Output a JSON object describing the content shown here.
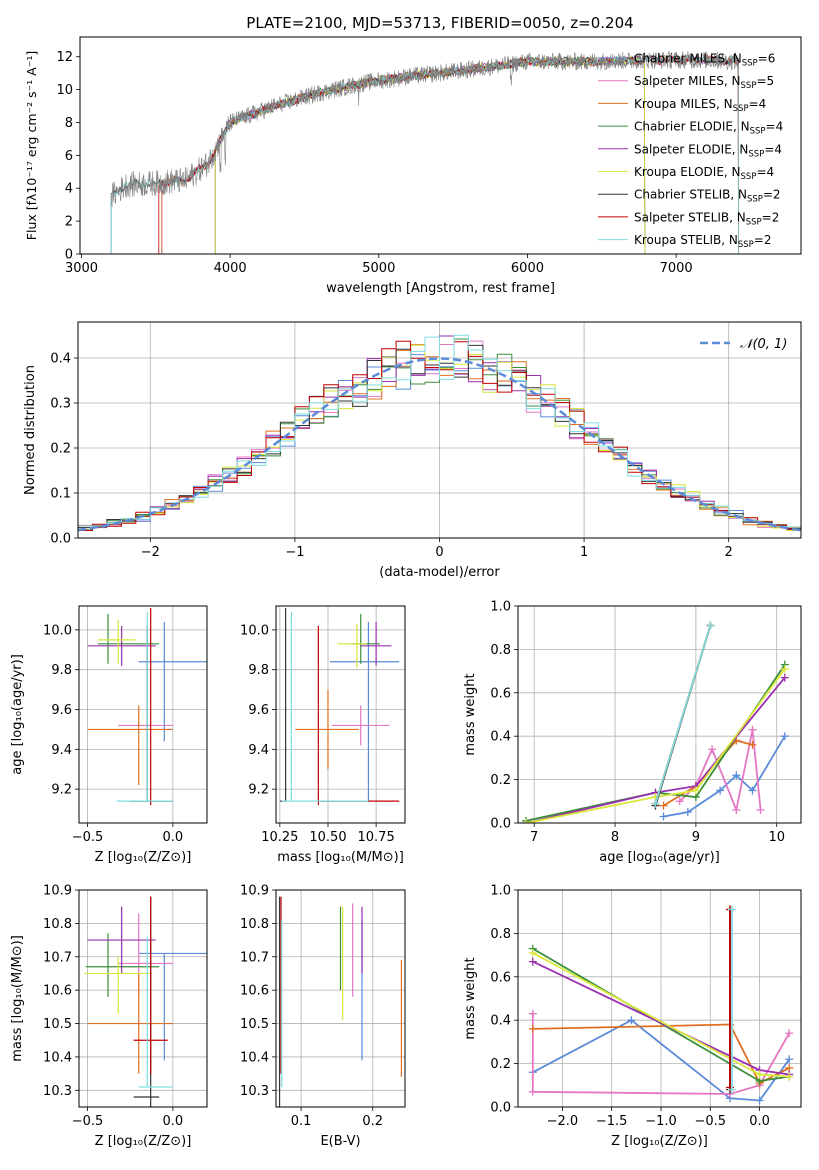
{
  "figure": {
    "title": "PLATE=2100, MJD=53713, FIBERID=0050, z=0.204"
  },
  "chart_data": [
    {
      "id": "spectrum",
      "type": "line",
      "xlabel": "wavelength [Angstrom, rest frame]",
      "ylabel": "Flux [fλ10⁻¹⁷ erg cm⁻² s⁻¹ A⁻¹]",
      "xlim": [
        2990,
        7840
      ],
      "ylim": [
        0,
        13.2
      ],
      "xticks": [
        3000,
        4000,
        5000,
        6000,
        7000
      ],
      "yticks": [
        0,
        2,
        4,
        6,
        8,
        10,
        12
      ],
      "legend_position": "right",
      "data_profile": {
        "x": [
          3200,
          3300,
          3500,
          3700,
          3850,
          4000,
          4300,
          4600,
          4900,
          5200,
          5600,
          6000,
          6400,
          6800,
          7200,
          7450
        ],
        "y": [
          3.5,
          4.2,
          4.3,
          4.5,
          5.5,
          8.0,
          9.0,
          9.8,
          10.4,
          10.8,
          11.2,
          11.7,
          11.7,
          11.8,
          11.8,
          11.7
        ]
      },
      "series": [
        {
          "name": "Chabrier MILES, N_SSP=6",
          "label_main": "Chabrier MILES, N",
          "label_sub": "SSP",
          "label_tail": "=6",
          "color": "#5b8bd8",
          "x_range": [
            3540,
            7420
          ]
        },
        {
          "name": "Salpeter MILES, N_SSP=5",
          "label_main": "Salpeter MILES, N",
          "label_sub": "SSP",
          "label_tail": "=5",
          "color": "#e377c2",
          "x_range": [
            3540,
            7420
          ]
        },
        {
          "name": "Kroupa MILES, N_SSP=4",
          "label_main": "Kroupa MILES, N",
          "label_sub": "SSP",
          "label_tail": "=4",
          "color": "#e0701f",
          "x_range": [
            3540,
            7420
          ]
        },
        {
          "name": "Chabrier ELODIE, N_SSP=4",
          "label_main": "Chabrier ELODIE, N",
          "label_sub": "SSP",
          "label_tail": "=4",
          "color": "#3b8f3b",
          "x_range": [
            3900,
            6790
          ]
        },
        {
          "name": "Salpeter ELODIE, N_SSP=4",
          "label_main": "Salpeter ELODIE, N",
          "label_sub": "SSP",
          "label_tail": "=4",
          "color": "#9b30b0",
          "x_range": [
            3900,
            6790
          ]
        },
        {
          "name": "Kroupa ELODIE, N_SSP=4",
          "label_main": "Kroupa ELODIE, N",
          "label_sub": "SSP",
          "label_tail": "=4",
          "color": "#d9e63a",
          "x_range": [
            3900,
            6790
          ]
        },
        {
          "name": "Chabrier STELIB, N_SSP=2",
          "label_main": "Chabrier STELIB, N",
          "label_sub": "SSP",
          "label_tail": "=2",
          "color": "#333333",
          "x_range": [
            3200,
            7420
          ]
        },
        {
          "name": "Salpeter STELIB, N_SSP=2",
          "label_main": "Salpeter STELIB, N",
          "label_sub": "SSP",
          "label_tail": "=2",
          "color": "#c00000",
          "x_range": [
            3520,
            7420
          ]
        },
        {
          "name": "Kroupa STELIB, N_SSP=2",
          "label_main": "Kroupa STELIB, N",
          "label_sub": "SSP",
          "label_tail": "=2",
          "color": "#7fdde0",
          "x_range": [
            3200,
            7420
          ]
        }
      ],
      "data_color": "#808080"
    },
    {
      "id": "residuals",
      "type": "histogram",
      "xlabel": "(data-model)/error",
      "ylabel": "Normed distribution",
      "xlim": [
        -2.5,
        2.5
      ],
      "ylim": [
        0,
        0.48
      ],
      "xticks": [
        -2,
        -1,
        0,
        1,
        2
      ],
      "yticks": [
        0.0,
        0.1,
        0.2,
        0.3,
        0.4
      ],
      "grid": true,
      "legend_position": "top-right",
      "bin_width": 0.1,
      "reference_label": "𝒩(0, 1)",
      "reference_color": "#5b8bd8",
      "histogram_colors": [
        "#5b8bd8",
        "#e377c2",
        "#e0701f",
        "#3b8f3b",
        "#9b30b0",
        "#d9e63a",
        "#333333",
        "#c00000",
        "#7fdde0"
      ]
    },
    {
      "id": "age_vs_Z",
      "type": "errorbar",
      "xlabel": "Z [log₁₀(Z/Z⊙)]",
      "ylabel": "age  [log₁₀(age/yr)]",
      "xlim": [
        -0.55,
        0.2
      ],
      "ylim": [
        9.03,
        10.12
      ],
      "xticks": [
        -0.5,
        0.0
      ],
      "yticks": [
        9.2,
        9.4,
        9.6,
        9.8,
        10.0
      ],
      "grid": true,
      "points": [
        {
          "x": -0.05,
          "y": 9.84,
          "xerr": [
            0.15,
            0.25
          ],
          "yerr": [
            0.4,
            0.2
          ],
          "color": "#5b8bd8"
        },
        {
          "x": -0.2,
          "y": 9.52,
          "xerr": [
            0.12,
            0.2
          ],
          "yerr": [
            0.0,
            0.0
          ],
          "color": "#e377c2"
        },
        {
          "x": -0.2,
          "y": 9.5,
          "xerr": [
            0.3,
            0.2
          ],
          "yerr": [
            0.28,
            0.12
          ],
          "color": "#e0701f"
        },
        {
          "x": -0.38,
          "y": 9.93,
          "xerr": [
            0.06,
            0.3
          ],
          "yerr": [
            0.1,
            0.15
          ],
          "color": "#3b8f3b"
        },
        {
          "x": -0.3,
          "y": 9.92,
          "xerr": [
            0.2,
            0.2
          ],
          "yerr": [
            0.1,
            0.1
          ],
          "color": "#9b30b0"
        },
        {
          "x": -0.32,
          "y": 9.95,
          "xerr": [
            0.12,
            0.1
          ],
          "yerr": [
            0.12,
            0.1
          ],
          "color": "#d9e63a"
        },
        {
          "x": -0.15,
          "y": 9.14,
          "xerr": [
            0.1,
            0.15
          ],
          "yerr": [
            0.0,
            0.88
          ],
          "color": "#333333"
        },
        {
          "x": -0.13,
          "y": 9.14,
          "xerr": [
            0.0,
            0.0
          ],
          "yerr": [
            0.02,
            0.97
          ],
          "color": "#c00000"
        },
        {
          "x": -0.15,
          "y": 9.14,
          "xerr": [
            0.18,
            0.15
          ],
          "yerr": [
            0.0,
            0.95
          ],
          "color": "#7fdde0"
        }
      ]
    },
    {
      "id": "age_vs_mass",
      "type": "errorbar",
      "xlabel": "mass [log₁₀(M/M⊙)]",
      "ylabel": "",
      "xlim": [
        10.23,
        10.9
      ],
      "ylim": [
        9.03,
        10.12
      ],
      "xticks": [
        10.25,
        10.5,
        10.75
      ],
      "xtick_labels": [
        "10.25",
        "10.50",
        "10.75"
      ],
      "yticks": [
        9.2,
        9.4,
        9.6,
        9.8,
        10.0
      ],
      "grid": true,
      "points": [
        {
          "x": 10.71,
          "y": 9.84,
          "xerr": [
            0.2,
            0.16
          ],
          "yerr": [
            0.7,
            0.2
          ],
          "color": "#5b8bd8"
        },
        {
          "x": 10.67,
          "y": 9.52,
          "xerr": [
            0.15,
            0.15
          ],
          "yerr": [
            0.1,
            0.1
          ],
          "color": "#e377c2"
        },
        {
          "x": 10.5,
          "y": 9.5,
          "xerr": [
            0.17,
            0.16
          ],
          "yerr": [
            0.2,
            0.2
          ],
          "color": "#e0701f"
        },
        {
          "x": 10.67,
          "y": 9.93,
          "xerr": [
            0.05,
            0.1
          ],
          "yerr": [
            0.1,
            0.15
          ],
          "color": "#3b8f3b"
        },
        {
          "x": 10.75,
          "y": 9.92,
          "xerr": [
            0.08,
            0.08
          ],
          "yerr": [
            0.1,
            0.12
          ],
          "color": "#9b30b0"
        },
        {
          "x": 10.65,
          "y": 9.93,
          "xerr": [
            0.1,
            0.05
          ],
          "yerr": [
            0.12,
            0.1
          ],
          "color": "#d9e63a"
        },
        {
          "x": 10.28,
          "y": 9.14,
          "xerr": [
            0.03,
            0.0
          ],
          "yerr": [
            0.0,
            0.97
          ],
          "color": "#333333"
        },
        {
          "x": 10.45,
          "y": 9.14,
          "xerr": [
            0.0,
            0.42
          ],
          "yerr": [
            0.02,
            0.88
          ],
          "color": "#c00000"
        },
        {
          "x": 10.31,
          "y": 9.14,
          "xerr": [
            0.05,
            0.4
          ],
          "yerr": [
            0.0,
            0.95
          ],
          "color": "#7fdde0"
        }
      ]
    },
    {
      "id": "mass_weight_vs_age",
      "type": "line",
      "xlabel": "age  [log₁₀(age/yr)]",
      "ylabel": "mass weight",
      "xlim": [
        6.8,
        10.3
      ],
      "ylim": [
        0,
        1.0
      ],
      "xticks": [
        7,
        8,
        9,
        10
      ],
      "yticks": [
        0.0,
        0.2,
        0.4,
        0.6,
        0.8,
        1.0
      ],
      "grid": true,
      "series": [
        {
          "color": "#5b8bd8",
          "x": [
            8.6,
            8.9,
            9.3,
            9.5,
            9.7,
            10.1
          ],
          "y": [
            0.03,
            0.05,
            0.15,
            0.22,
            0.15,
            0.4
          ]
        },
        {
          "color": "#e377c2",
          "x": [
            8.8,
            9.0,
            9.2,
            9.5,
            9.7,
            9.8
          ],
          "y": [
            0.1,
            0.17,
            0.34,
            0.06,
            0.43,
            0.06
          ]
        },
        {
          "color": "#e0701f",
          "x": [
            8.6,
            9.0,
            9.5,
            9.7
          ],
          "y": [
            0.08,
            0.17,
            0.38,
            0.36
          ]
        },
        {
          "color": "#3b8f3b",
          "x": [
            6.9,
            8.5,
            9.0,
            10.1
          ],
          "y": [
            0.01,
            0.14,
            0.12,
            0.73
          ]
        },
        {
          "color": "#9b30b0",
          "x": [
            6.9,
            8.5,
            9.0,
            10.1
          ],
          "y": [
            0.0,
            0.14,
            0.17,
            0.67
          ]
        },
        {
          "color": "#d9e63a",
          "x": [
            6.9,
            8.5,
            9.0,
            10.1
          ],
          "y": [
            0.0,
            0.12,
            0.15,
            0.71
          ]
        },
        {
          "color": "#333333",
          "x": [
            8.5,
            9.18
          ],
          "y": [
            0.08,
            0.91
          ]
        },
        {
          "color": "#c00000",
          "x": [
            8.5,
            9.18
          ],
          "y": [
            0.09,
            0.91
          ]
        },
        {
          "color": "#7fdde0",
          "x": [
            8.5,
            9.18
          ],
          "y": [
            0.09,
            0.91
          ]
        }
      ]
    },
    {
      "id": "mass_vs_Z",
      "type": "errorbar",
      "xlabel": "Z [log₁₀(Z/Z⊙)]",
      "ylabel": "mass [log₁₀(M/M⊙)]",
      "xlim": [
        -0.55,
        0.2
      ],
      "ylim": [
        10.25,
        10.9
      ],
      "xticks": [
        -0.5,
        0.0
      ],
      "yticks": [
        10.3,
        10.4,
        10.5,
        10.6,
        10.7,
        10.8,
        10.9
      ],
      "grid": true,
      "points": [
        {
          "x": -0.05,
          "y": 10.71,
          "xerr": [
            0.15,
            0.25
          ],
          "yerr": [
            0.32,
            0.0
          ],
          "color": "#5b8bd8"
        },
        {
          "x": -0.2,
          "y": 10.68,
          "xerr": [
            0.12,
            0.2
          ],
          "yerr": [
            0.1,
            0.15
          ],
          "color": "#e377c2"
        },
        {
          "x": -0.2,
          "y": 10.5,
          "xerr": [
            0.3,
            0.2
          ],
          "yerr": [
            0.15,
            0.15
          ],
          "color": "#e0701f"
        },
        {
          "x": -0.38,
          "y": 10.67,
          "xerr": [
            0.13,
            0.3
          ],
          "yerr": [
            0.09,
            0.1
          ],
          "color": "#3b8f3b"
        },
        {
          "x": -0.3,
          "y": 10.75,
          "xerr": [
            0.2,
            0.2
          ],
          "yerr": [
            0.1,
            0.1
          ],
          "color": "#9b30b0"
        },
        {
          "x": -0.32,
          "y": 10.65,
          "xerr": [
            0.2,
            0.2
          ],
          "yerr": [
            0.12,
            0.05
          ],
          "color": "#d9e63a"
        },
        {
          "x": -0.13,
          "y": 10.28,
          "xerr": [
            0.1,
            0.05
          ],
          "yerr": [
            0.03,
            0.6
          ],
          "color": "#333333"
        },
        {
          "x": -0.13,
          "y": 10.45,
          "xerr": [
            0.1,
            0.1
          ],
          "yerr": [
            0.1,
            0.43
          ],
          "color": "#c00000"
        },
        {
          "x": -0.15,
          "y": 10.31,
          "xerr": [
            0.05,
            0.15
          ],
          "yerr": [
            0.0,
            0.45
          ],
          "color": "#7fdde0"
        }
      ]
    },
    {
      "id": "mass_vs_ebv",
      "type": "errorbar",
      "xlabel": "E(B-V)",
      "ylabel": "",
      "xlim": [
        0.065,
        0.245
      ],
      "ylim": [
        10.25,
        10.9
      ],
      "xticks": [
        0.1,
        0.2
      ],
      "yticks": [
        10.3,
        10.4,
        10.5,
        10.6,
        10.7,
        10.8,
        10.9
      ],
      "grid": true,
      "points": [
        {
          "x": 0.185,
          "y": 10.71,
          "xerr": [
            0,
            0
          ],
          "yerr": [
            0.32,
            0.1
          ],
          "color": "#5b8bd8"
        },
        {
          "x": 0.172,
          "y": 10.68,
          "xerr": [
            0,
            0
          ],
          "yerr": [
            0.1,
            0.18
          ],
          "color": "#e377c2"
        },
        {
          "x": 0.24,
          "y": 10.5,
          "xerr": [
            0,
            0
          ],
          "yerr": [
            0.16,
            0.19
          ],
          "color": "#e0701f"
        },
        {
          "x": 0.155,
          "y": 10.7,
          "xerr": [
            0,
            0
          ],
          "yerr": [
            0.1,
            0.15
          ],
          "color": "#3b8f3b"
        },
        {
          "x": 0.185,
          "y": 10.75,
          "xerr": [
            0,
            0
          ],
          "yerr": [
            0.1,
            0.1
          ],
          "color": "#9b30b0"
        },
        {
          "x": 0.158,
          "y": 10.65,
          "xerr": [
            0,
            0
          ],
          "yerr": [
            0.14,
            0.2
          ],
          "color": "#d9e63a"
        },
        {
          "x": 0.07,
          "y": 10.28,
          "xerr": [
            0,
            0
          ],
          "yerr": [
            0.03,
            0.6
          ],
          "color": "#333333"
        },
        {
          "x": 0.072,
          "y": 10.45,
          "xerr": [
            0,
            0
          ],
          "yerr": [
            0.1,
            0.43
          ],
          "color": "#c00000"
        },
        {
          "x": 0.073,
          "y": 10.31,
          "xerr": [
            0,
            0
          ],
          "yerr": [
            0.0,
            0.5
          ],
          "color": "#7fdde0"
        }
      ]
    },
    {
      "id": "mass_weight_vs_Z",
      "type": "line",
      "xlabel": "Z [log₁₀(Z/Z⊙)]",
      "ylabel": "mass weight",
      "xlim": [
        -2.45,
        0.42
      ],
      "ylim": [
        0,
        1.0
      ],
      "xticks": [
        -2.0,
        -1.5,
        -1.0,
        -0.5,
        0.0
      ],
      "xtick_labels": [
        "−2.0",
        "−1.5",
        "−1.0",
        "−0.5",
        "0.0"
      ],
      "yticks": [
        0.0,
        0.2,
        0.4,
        0.6,
        0.8,
        1.0
      ],
      "grid": true,
      "series": [
        {
          "color": "#5b8bd8",
          "x": [
            -2.3,
            -1.3,
            -0.3,
            0.0,
            0.3
          ],
          "y": [
            0.16,
            0.4,
            0.04,
            0.03,
            0.22
          ]
        },
        {
          "color": "#e377c2",
          "x": [
            -2.3,
            -2.3,
            -0.3,
            0.0,
            0.3
          ],
          "y": [
            0.43,
            0.07,
            0.06,
            0.1,
            0.34
          ]
        },
        {
          "color": "#e0701f",
          "x": [
            -2.3,
            -0.3,
            0.0,
            0.3
          ],
          "y": [
            0.36,
            0.38,
            0.11,
            0.18
          ]
        },
        {
          "color": "#3b8f3b",
          "x": [
            -2.3,
            0.0,
            0.3
          ],
          "y": [
            0.73,
            0.12,
            0.14
          ]
        },
        {
          "color": "#9b30b0",
          "x": [
            -2.3,
            0.0,
            0.3
          ],
          "y": [
            0.67,
            0.17,
            0.15
          ]
        },
        {
          "color": "#d9e63a",
          "x": [
            -2.3,
            0.0,
            0.3
          ],
          "y": [
            0.71,
            0.15,
            0.14
          ]
        },
        {
          "color": "#333333",
          "x": [
            -0.3,
            -0.3
          ],
          "y": [
            0.08,
            0.91
          ]
        },
        {
          "color": "#c00000",
          "x": [
            -0.3,
            -0.3
          ],
          "y": [
            0.09,
            0.91
          ]
        },
        {
          "color": "#7fdde0",
          "x": [
            -0.28,
            -0.28
          ],
          "y": [
            0.08,
            0.91
          ]
        }
      ]
    }
  ]
}
